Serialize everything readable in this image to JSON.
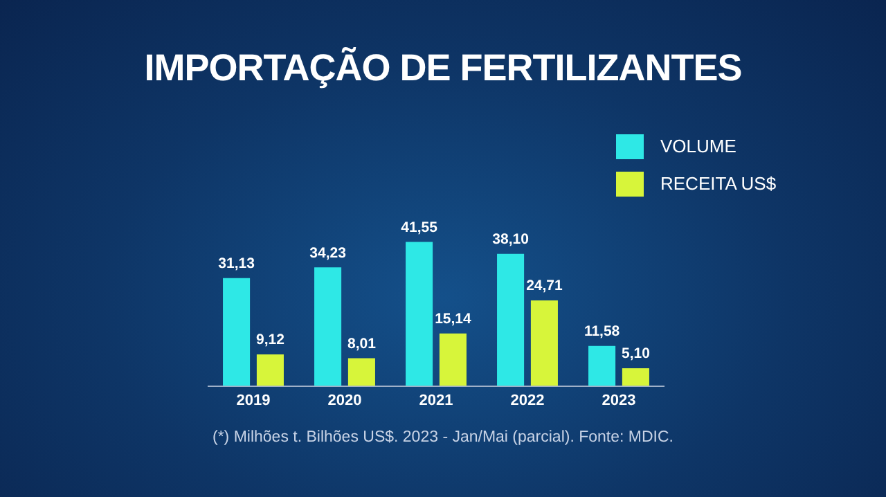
{
  "chart_data": {
    "type": "bar",
    "title": "IMPORTAÇÃO DE FERTILIZANTES",
    "categories": [
      "2019",
      "2020",
      "2021",
      "2022",
      "2023"
    ],
    "series": [
      {
        "name": "VOLUME",
        "color": "#2ee8e6",
        "values": [
          31.13,
          34.23,
          41.55,
          38.1,
          11.58
        ],
        "value_labels": [
          "31,13",
          "34,23",
          "41,55",
          "38,10",
          "11,58"
        ]
      },
      {
        "name": "RECEITA US$",
        "color": "#d7f53a",
        "values": [
          9.12,
          8.01,
          15.14,
          24.71,
          5.1
        ],
        "value_labels": [
          "9,12",
          "8,01",
          "15,14",
          "24,71",
          "5,10"
        ]
      }
    ],
    "legend": "top right",
    "grid": false,
    "tick_labels": "x",
    "annotations": [
      "(*) Milhões t. Bilhões US$. 2023 - Jan/Mai (parcial). Fonte: MDIC."
    ]
  }
}
